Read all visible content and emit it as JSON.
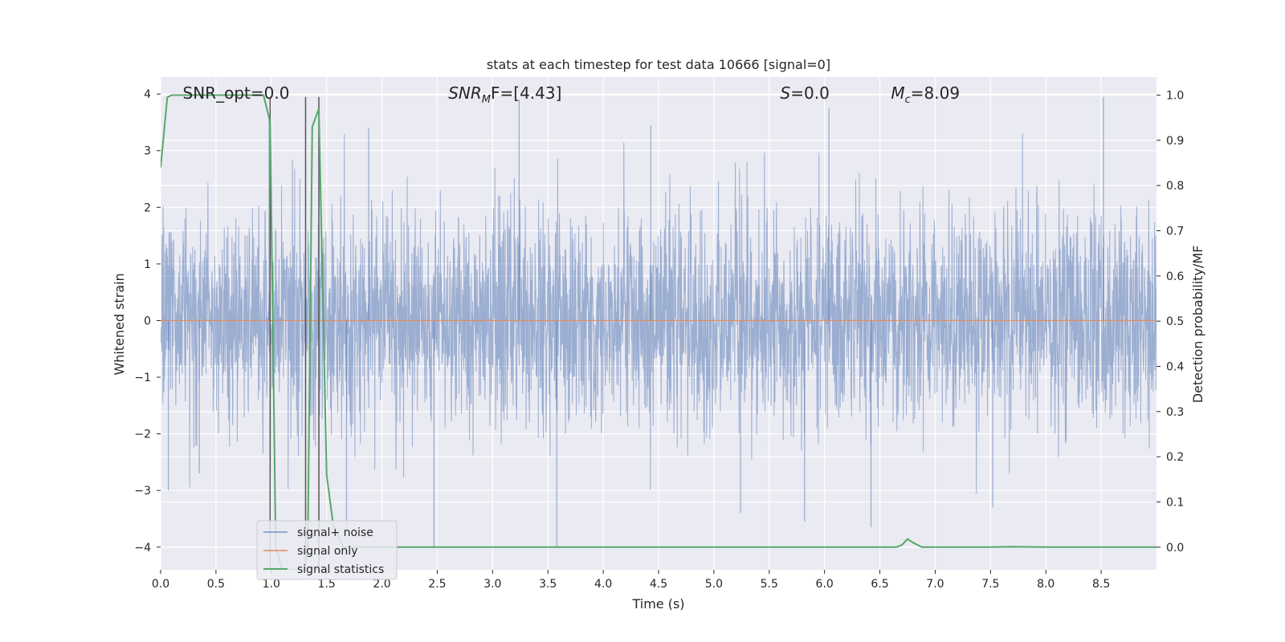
{
  "chart_data": {
    "type": "line",
    "title": "stats at each timestep for test data 10666 [signal=0]",
    "xlabel": "Time (s)",
    "ylabel": "Whitened strain",
    "ylabel_right": "Detection probability/MF",
    "xlim": [
      0,
      9.0
    ],
    "ylim": [
      -4.4,
      4.3
    ],
    "ylim_right": [
      -0.05,
      1.04
    ],
    "xticks": [
      "0.0",
      "0.5",
      "1.0",
      "1.5",
      "2.0",
      "2.5",
      "3.0",
      "3.5",
      "4.0",
      "4.5",
      "5.0",
      "5.5",
      "6.0",
      "6.5",
      "7.0",
      "7.5",
      "8.0",
      "8.5"
    ],
    "yticks": [
      "4",
      "3",
      "2",
      "1",
      "0",
      "−1",
      "−2",
      "−3",
      "−4"
    ],
    "yticks_right": [
      "1.0",
      "0.9",
      "0.8",
      "0.7",
      "0.6",
      "0.5",
      "0.4",
      "0.3",
      "0.2",
      "0.1",
      "0.0"
    ],
    "grid": true,
    "annotations": [
      {
        "text": "SNR_opt=0.0",
        "x": 0.2
      },
      {
        "text_main": "SNR",
        "text_sub": "M",
        "text_rest": "F=[4.43]",
        "x": 2.6
      },
      {
        "text_main": "S",
        "text_rest": "=0.0",
        "x": 5.6
      },
      {
        "text_main": "M",
        "text_sub": "c",
        "text_rest": "=8.09",
        "x": 6.6
      }
    ],
    "vlines": [
      {
        "x": 0.99,
        "y_top": 3.95
      },
      {
        "x": 1.31,
        "y_top": 3.95
      },
      {
        "x": 1.43,
        "y_top": 3.95
      }
    ],
    "series": [
      {
        "name": "signal+ noise",
        "color": "#4c72b0",
        "kind": "noise",
        "sigma": 0.95,
        "extremes": [
          {
            "x": 2.47,
            "y": -4.0
          },
          {
            "x": 3.58,
            "y": -4.0
          },
          {
            "x": 6.42,
            "y": -3.65
          },
          {
            "x": 8.52,
            "y": 3.95
          },
          {
            "x": 3.24,
            "y": 3.9
          },
          {
            "x": 5.82,
            "y": -3.55
          },
          {
            "x": 6.04,
            "y": 3.75
          },
          {
            "x": 1.88,
            "y": 3.4
          },
          {
            "x": 4.43,
            "y": 3.45
          },
          {
            "x": 0.98,
            "y": 3.6
          },
          {
            "x": 0.07,
            "y": -3.0
          },
          {
            "x": 0.35,
            "y": -2.7
          },
          {
            "x": 1.68,
            "y": -3.7
          },
          {
            "x": 5.24,
            "y": -3.4
          },
          {
            "x": 7.52,
            "y": -3.3
          }
        ]
      },
      {
        "name": "signal only",
        "color": "#dd8452",
        "x": [
          0.0,
          9.0
        ],
        "y": [
          0.0,
          0.0
        ]
      },
      {
        "name": "signal statistics",
        "color": "#55a868",
        "axis": "right",
        "x": [
          0.0,
          0.06,
          0.1,
          0.2,
          0.5,
          0.7,
          0.93,
          0.99,
          1.04,
          1.1,
          1.3,
          1.33,
          1.37,
          1.43,
          1.5,
          1.56,
          1.65,
          2.0,
          3.0,
          4.0,
          5.0,
          6.0,
          6.65,
          6.7,
          6.75,
          6.8,
          6.88,
          7.0,
          7.5,
          7.7,
          8.0,
          9.0
        ],
        "y": [
          0.84,
          0.995,
          1.0,
          1.0,
          1.0,
          1.0,
          1.0,
          0.94,
          0.0,
          -0.05,
          -0.05,
          0.0,
          0.93,
          0.97,
          0.16,
          0.05,
          0.0,
          0.0,
          0.0,
          0.0,
          0.0,
          0.0,
          0.0,
          0.005,
          0.018,
          0.01,
          0.0,
          0.0,
          0.0,
          0.001,
          0.0,
          0.0
        ]
      }
    ],
    "legend": {
      "placement": "lower-left",
      "entries": [
        "signal+ noise",
        "signal only",
        "signal statistics"
      ]
    }
  }
}
